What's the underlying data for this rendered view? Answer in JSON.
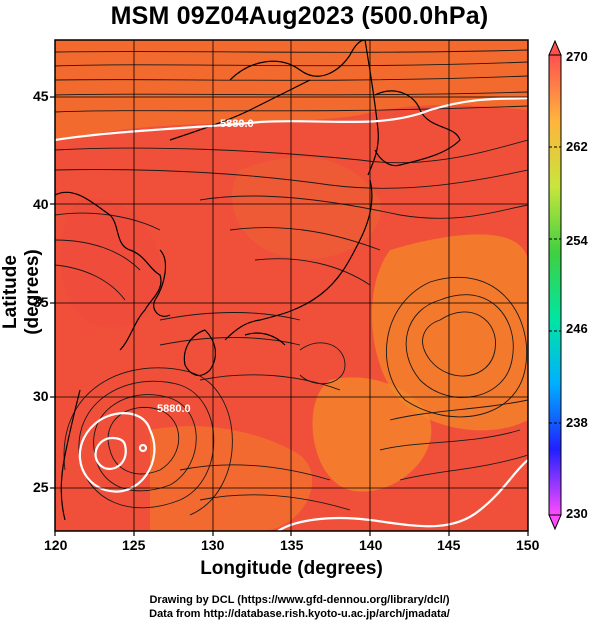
{
  "title": "MSM 09Z04Aug2023 (500.0hPa)",
  "xlabel": "Longitude (degrees)",
  "ylabel": "Latitude  (degrees)",
  "credit_line1": "Drawing by DCL (https://www.gfd-dennou.org/library/dcl/)",
  "credit_line2": "Data from http://database.rish.kyoto-u.ac.jp/arch/jmadata/",
  "map": {
    "lon_range": [
      120,
      150
    ],
    "lat_range": [
      22.7,
      47.6
    ],
    "lon_ticks": [
      120,
      125,
      130,
      135,
      140,
      145,
      150
    ],
    "lat_ticks": [
      25,
      30,
      35,
      40,
      45
    ],
    "contour_label": "5880.0",
    "colors": {
      "background": "#f0503a",
      "warm_patch": "#f3802c",
      "cool_patch": "#ee4a3c",
      "streamline": "#1a1a1a",
      "contour": "#ffffff",
      "coastline": "#000000"
    }
  },
  "colorbar": {
    "min": 230,
    "max": 270,
    "labels": [
      "270",
      "262",
      "254",
      "246",
      "238",
      "230"
    ],
    "stops": [
      "#ff4bff",
      "#2020ff",
      "#00b0ff",
      "#00e6a0",
      "#40d040",
      "#c8e63c",
      "#ffb43c",
      "#ff5050"
    ]
  }
}
